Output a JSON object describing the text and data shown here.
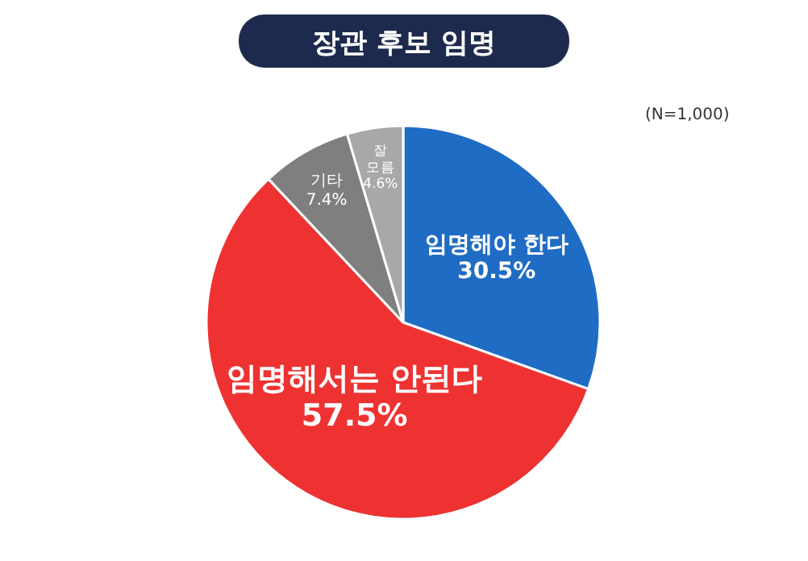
{
  "chart_data": {
    "type": "pie",
    "title": "장관 후보 임명",
    "categories": [
      "임명해야 한다",
      "임명해서는 안된다",
      "기타",
      "잘 모름"
    ],
    "values": [
      30.5,
      57.5,
      7.4,
      4.6
    ],
    "colors": [
      "#1f6cc4",
      "#ee3232",
      "#7f7f7f",
      "#a8a8a8"
    ],
    "value_labels": [
      "30.5%",
      "57.5%",
      "7.4%",
      "4.6%"
    ],
    "annotations": [
      "(N=1,000)"
    ]
  }
}
